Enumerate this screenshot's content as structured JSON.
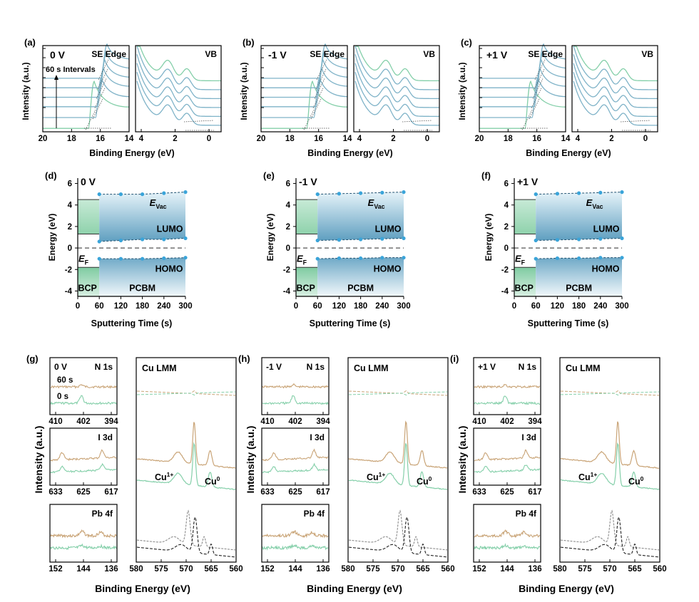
{
  "figure": {
    "xps_axis_label": "Binding Energy (eV)",
    "intensity_label": "Intensity (a.u.)"
  },
  "ups_panels": [
    {
      "letter": "(a)",
      "bias": "0 V",
      "left_title": "SE Edge",
      "right_title": "VB",
      "annotation": "60 s Intervals",
      "xlabel": "Binding Energy (eV)",
      "ylabel": "Intensity (a.u.)",
      "left_ticks": [
        "20",
        "18",
        "16",
        "14"
      ],
      "right_ticks": [
        "4",
        "2",
        "0"
      ]
    },
    {
      "letter": "(b)",
      "bias": "-1 V",
      "left_title": "SE Edge",
      "right_title": "VB",
      "annotation": "",
      "xlabel": "Binding Energy (eV)",
      "ylabel": "Intensity (a.u.)",
      "left_ticks": [
        "20",
        "18",
        "16",
        "14"
      ],
      "right_ticks": [
        "4",
        "2",
        "0"
      ]
    },
    {
      "letter": "(c)",
      "bias": "+1 V",
      "left_title": "SE Edge",
      "right_title": "VB",
      "annotation": "",
      "xlabel": "Binding Energy (eV)",
      "ylabel": "Intensity (a.u.)",
      "left_ticks": [
        "20",
        "18",
        "16",
        "14"
      ],
      "right_ticks": [
        "4",
        "2",
        "0"
      ]
    }
  ],
  "energy_panels": [
    {
      "letter": "(d)",
      "bias": "0 V"
    },
    {
      "letter": "(e)",
      "bias": "-1 V"
    },
    {
      "letter": "(f)",
      "bias": "+1 V"
    }
  ],
  "energy_common": {
    "xlabel": "Sputtering Time (s)",
    "ylabel": "Energy (eV)",
    "evac_label": "E",
    "evac_sub": "Vac",
    "ef_label": "E",
    "ef_sub": "F",
    "lumo_label": "LUMO",
    "homo_label": "HOMO",
    "bcp_label": "BCP",
    "pcbm_label": "PCBM",
    "x_ticks": [
      "0",
      "60",
      "120",
      "180",
      "240",
      "300"
    ],
    "y_ticks": [
      "6",
      "4",
      "2",
      "0",
      "-2",
      "-4"
    ]
  },
  "xps_panels": [
    {
      "letter": "(g)",
      "bias": "0 V"
    },
    {
      "letter": "(h)",
      "bias": "-1 V"
    },
    {
      "letter": "(i)",
      "bias": "+1 V"
    }
  ],
  "xps_common": {
    "n1s_label": "N 1s",
    "i3d_label": "I 3d",
    "pb4f_label": "Pb 4f",
    "culmm_label": "Cu LMM",
    "legend_60s": "60 s",
    "legend_0s": "0 s",
    "cu1_label": "Cu",
    "cu1_sup": "1+",
    "cu0_label": "Cu",
    "cu0_sup": "0",
    "n1s_ticks": [
      "410",
      "402",
      "394"
    ],
    "i3d_ticks": [
      "633",
      "625",
      "617"
    ],
    "pb4f_ticks": [
      "152",
      "144",
      "136"
    ],
    "cu_ticks": [
      "580",
      "575",
      "570",
      "565",
      "560"
    ]
  },
  "chart_data": [
    {
      "type": "line",
      "panel": "(a)",
      "title": "0 V",
      "subplots": [
        {
          "name": "SE Edge",
          "xlim": [
            20,
            14
          ],
          "x_reversed": true,
          "spectra_count": 6,
          "cutoff_eV": [
            16.5,
            16.2,
            16.0,
            16.0,
            16.0,
            16.0
          ],
          "peak_eV": 15.8
        },
        {
          "name": "VB",
          "xlim": [
            5,
            -1
          ],
          "x_reversed": true,
          "spectra_count": 6,
          "peaks_eV": [
            2.8,
            1.4
          ]
        }
      ],
      "annotation": "60 s Intervals"
    },
    {
      "type": "line",
      "panel": "(b)",
      "title": "-1 V",
      "subplots": [
        {
          "name": "SE Edge",
          "xlim": [
            20,
            14
          ],
          "x_reversed": true,
          "spectra_count": 6,
          "peak_eV": 15.8
        },
        {
          "name": "VB",
          "xlim": [
            5,
            -1
          ],
          "x_reversed": true,
          "spectra_count": 6,
          "peaks_eV": [
            2.8,
            1.4
          ]
        }
      ]
    },
    {
      "type": "line",
      "panel": "(c)",
      "title": "+1 V",
      "subplots": [
        {
          "name": "SE Edge",
          "xlim": [
            20,
            14
          ],
          "x_reversed": true,
          "spectra_count": 6,
          "peak_eV": 15.8
        },
        {
          "name": "VB",
          "xlim": [
            5,
            -1
          ],
          "x_reversed": true,
          "spectra_count": 6,
          "peaks_eV": [
            2.8,
            1.4
          ]
        }
      ]
    },
    {
      "type": "line",
      "panel": "(d)",
      "title": "0 V",
      "xlim": [
        0,
        300
      ],
      "ylim": [
        -4.5,
        6.5
      ],
      "bcp": {
        "x": [
          0,
          60
        ],
        "evac": 4.5,
        "lumo": 1.3,
        "homo": -1.8
      },
      "pcbm": {
        "x": [
          60,
          300
        ]
      },
      "series": [
        {
          "name": "EVac",
          "x": [
            60,
            120,
            180,
            240,
            300
          ],
          "values": [
            5.0,
            5.0,
            5.0,
            5.1,
            5.2
          ]
        },
        {
          "name": "LUMO",
          "x": [
            60,
            120,
            180,
            240,
            300
          ],
          "values": [
            0.6,
            0.7,
            0.8,
            0.8,
            0.9
          ]
        },
        {
          "name": "HOMO",
          "x": [
            60,
            120,
            180,
            240,
            300
          ],
          "values": [
            -1.0,
            -1.0,
            -1.0,
            -0.95,
            -0.9
          ]
        }
      ],
      "ef": 0
    },
    {
      "type": "line",
      "panel": "(e)",
      "title": "-1 V",
      "xlim": [
        0,
        300
      ],
      "ylim": [
        -4.5,
        6.5
      ],
      "bcp": {
        "x": [
          0,
          60
        ],
        "evac": 4.5,
        "lumo": 1.3,
        "homo": -1.8
      },
      "pcbm": {
        "x": [
          60,
          300
        ]
      },
      "series": [
        {
          "name": "EVac",
          "x": [
            60,
            120,
            180,
            240,
            300
          ],
          "values": [
            5.0,
            5.05,
            5.1,
            5.15,
            5.2
          ]
        },
        {
          "name": "LUMO",
          "x": [
            60,
            120,
            180,
            240,
            300
          ],
          "values": [
            0.7,
            0.75,
            0.8,
            0.85,
            0.9
          ]
        },
        {
          "name": "HOMO",
          "x": [
            60,
            120,
            180,
            240,
            300
          ],
          "values": [
            -1.0,
            -0.95,
            -0.95,
            -0.9,
            -0.9
          ]
        }
      ],
      "ef": 0
    },
    {
      "type": "line",
      "panel": "(f)",
      "title": "+1 V",
      "xlim": [
        0,
        300
      ],
      "ylim": [
        -4.5,
        6.5
      ],
      "bcp": {
        "x": [
          0,
          60
        ],
        "evac": 4.5,
        "lumo": 1.3,
        "homo": -1.8
      },
      "pcbm": {
        "x": [
          60,
          300
        ]
      },
      "series": [
        {
          "name": "EVac",
          "x": [
            60,
            120,
            180,
            240,
            300
          ],
          "values": [
            5.0,
            5.05,
            5.1,
            5.15,
            5.2
          ]
        },
        {
          "name": "LUMO",
          "x": [
            60,
            120,
            180,
            240,
            300
          ],
          "values": [
            0.7,
            0.75,
            0.8,
            0.85,
            0.9
          ]
        },
        {
          "name": "HOMO",
          "x": [
            60,
            120,
            180,
            240,
            300
          ],
          "values": [
            -1.0,
            -0.95,
            -0.95,
            -0.9,
            -0.9
          ]
        }
      ],
      "ef": 0
    },
    {
      "type": "line",
      "panel": "(g)",
      "title": "0 V",
      "subplots": [
        {
          "name": "N 1s",
          "xlim": [
            410,
            390
          ],
          "series": [
            "60 s",
            "0 s"
          ],
          "peak_eV": 400
        },
        {
          "name": "I 3d",
          "xlim": [
            637,
            613
          ],
          "series": [
            "60 s",
            "0 s"
          ],
          "peaks_eV": [
            630.5,
            619
          ]
        },
        {
          "name": "Pb 4f",
          "xlim": [
            154,
            132
          ],
          "series": [
            "60 s",
            "0 s"
          ],
          "peaks_eV": [
            143,
            138
          ]
        },
        {
          "name": "Cu LMM",
          "xlim": [
            580,
            560
          ],
          "series": [
            "60 s",
            "0 s",
            "Cu1+ reference",
            "Cu0 reference"
          ],
          "peaks_eV": [
            568,
            570
          ]
        }
      ]
    },
    {
      "type": "line",
      "panel": "(h)",
      "title": "-1 V",
      "subplots": [
        {
          "name": "N 1s",
          "xlim": [
            410,
            390
          ],
          "series": [
            "60 s",
            "0 s"
          ],
          "peak_eV": 400
        },
        {
          "name": "I 3d",
          "xlim": [
            637,
            613
          ],
          "series": [
            "60 s",
            "0 s"
          ],
          "peaks_eV": [
            630.5,
            619
          ]
        },
        {
          "name": "Pb 4f",
          "xlim": [
            154,
            132
          ],
          "series": [
            "60 s",
            "0 s"
          ],
          "peaks_eV": [
            143,
            138
          ]
        },
        {
          "name": "Cu LMM",
          "xlim": [
            580,
            560
          ],
          "series": [
            "60 s",
            "0 s",
            "Cu1+ reference",
            "Cu0 reference"
          ],
          "peaks_eV": [
            568,
            570
          ]
        }
      ]
    },
    {
      "type": "line",
      "panel": "(i)",
      "title": "+1 V",
      "subplots": [
        {
          "name": "N 1s",
          "xlim": [
            410,
            390
          ],
          "series": [
            "60 s",
            "0 s"
          ],
          "peak_eV": 400
        },
        {
          "name": "I 3d",
          "xlim": [
            637,
            613
          ],
          "series": [
            "60 s",
            "0 s"
          ],
          "peaks_eV": [
            630.5,
            619
          ]
        },
        {
          "name": "Pb 4f",
          "xlim": [
            154,
            132
          ],
          "series": [
            "60 s",
            "0 s"
          ],
          "peaks_eV": [
            143,
            138
          ]
        },
        {
          "name": "Cu LMM",
          "xlim": [
            580,
            560
          ],
          "series": [
            "60 s",
            "0 s",
            "Cu1+ reference",
            "Cu0 reference"
          ],
          "peaks_eV": [
            568,
            570
          ]
        }
      ]
    }
  ],
  "colors": {
    "teal": "#7fb3c8",
    "teal_dark": "#5e97b0",
    "green": "#84cfa9",
    "tan": "#c9a477",
    "gray": "#8c8c8c",
    "black": "#222222",
    "blue_dot": "#3aa4d9"
  }
}
